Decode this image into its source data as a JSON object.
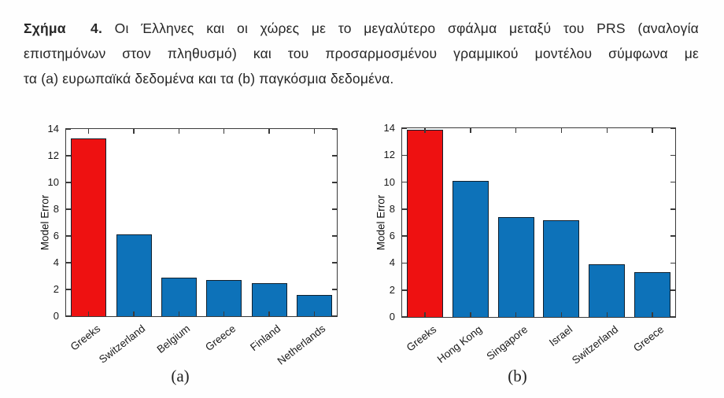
{
  "caption": {
    "label": "Σχήμα  4.",
    "line1": " Οι Έλληνες και οι χώρες με το μεγαλύτερο σφάλμα μεταξύ του PRS (αναλογία",
    "line2": "επιστημόνων στον πληθυσμό) και του προσαρμοσμένου γραμμικού μοντέλου σύμφωνα με",
    "line3": "τα (a) ευρωπαϊκά δεδομένα και τα (b) παγκόσμια δεδομένα."
  },
  "colors": {
    "highlight_bar": "#ee1111",
    "default_bar": "#0d72b9",
    "bar_edge": "#10202e",
    "axis": "#3a3a3a",
    "text": "#1a1a1a"
  },
  "chart_data": [
    {
      "type": "bar",
      "panel_label": "(a)",
      "title": "",
      "xlabel": "",
      "ylabel": "Model Error",
      "ylim": [
        0,
        14
      ],
      "yticks": [
        0,
        2,
        4,
        6,
        8,
        10,
        12,
        14
      ],
      "categories": [
        "Greeks",
        "Switzerland",
        "Belgium",
        "Greece",
        "Finland",
        "Netherlands"
      ],
      "values": [
        13.3,
        6.1,
        2.9,
        2.7,
        2.5,
        1.6
      ],
      "highlight_index": 0,
      "grid": false,
      "legend": "none"
    },
    {
      "type": "bar",
      "panel_label": "(b)",
      "title": "",
      "xlabel": "",
      "ylabel": "Model Error",
      "ylim": [
        0,
        14
      ],
      "yticks": [
        0,
        2,
        4,
        6,
        8,
        10,
        12,
        14
      ],
      "categories": [
        "Greeks",
        "Hong Kong",
        "Singapore",
        "Israel",
        "Switzerland",
        "Greece"
      ],
      "values": [
        13.9,
        10.1,
        7.4,
        7.2,
        3.9,
        3.3
      ],
      "highlight_index": 0,
      "grid": false,
      "legend": "none"
    }
  ]
}
